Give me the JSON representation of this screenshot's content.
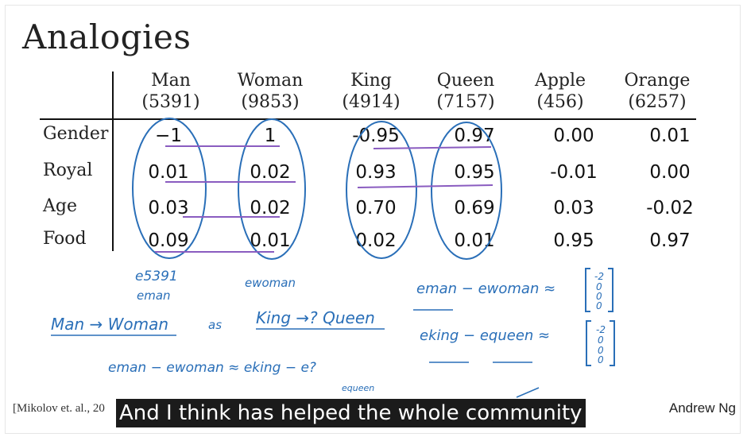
{
  "slide": {
    "title": "Analogies",
    "citation": "[Mikolov et. al., 20",
    "author": "Andrew Ng"
  },
  "table": {
    "columns": [
      {
        "name": "Man",
        "index": "(5391)"
      },
      {
        "name": "Woman",
        "index": "(9853)"
      },
      {
        "name": "King",
        "index": "(4914)"
      },
      {
        "name": "Queen",
        "index": "(7157)"
      },
      {
        "name": "Apple",
        "index": "(456)"
      },
      {
        "name": "Orange",
        "index": "(6257)"
      }
    ],
    "rows": [
      {
        "label": "Gender",
        "values": [
          "−1",
          "1",
          "-0.95",
          "0.97",
          "0.00",
          "0.01"
        ]
      },
      {
        "label": "Royal",
        "values": [
          "0.01",
          "0.02",
          "0.93",
          "0.95",
          "-0.01",
          "0.00"
        ]
      },
      {
        "label": "Age",
        "values": [
          "0.03",
          "0.02",
          "0.70",
          "0.69",
          "0.03",
          "-0.02"
        ]
      },
      {
        "label": "Food",
        "values": [
          "0.09",
          "0.01",
          "0.02",
          "0.01",
          "0.95",
          "0.97"
        ]
      }
    ]
  },
  "annotations": {
    "e5391": "e5391",
    "eman_label": "eman",
    "ewoman_label": "ewoman",
    "diff1_lhs": "eman − ewoman ≈",
    "diff2_lhs": "eking − equeen ≈",
    "analogy_left": "Man → Woman",
    "analogy_as": "as",
    "analogy_right": "King →? Queen",
    "equation": "eman − ewoman ≈ eking − e?",
    "equeen_note": "equeen",
    "vector1": [
      "-2",
      "0",
      "0",
      "0"
    ],
    "vector2": [
      "-2",
      "0",
      "0",
      "0"
    ]
  },
  "caption": {
    "text": "And I think has helped the whole community"
  },
  "colors": {
    "ink_blue": "#2a6fb8",
    "ink_purple": "#8a5cc0",
    "caption_bg": "#1b1b1b"
  }
}
